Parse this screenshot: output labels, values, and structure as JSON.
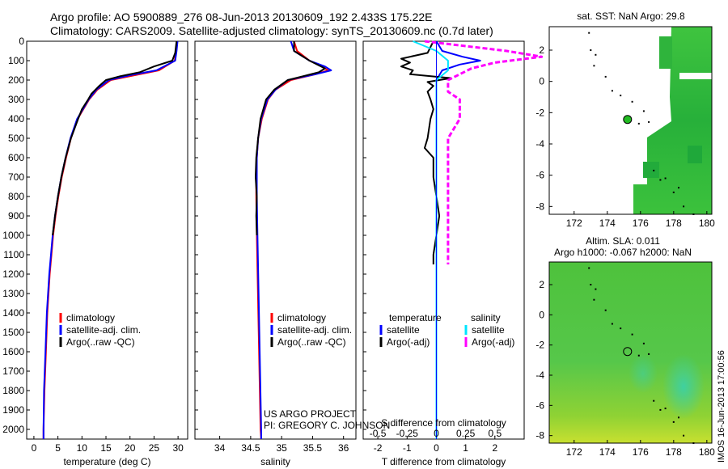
{
  "header": {
    "line1": "Argo profile: AO 5900889_276 08-Jun-2013 20130609_192 2.433S 175.22E",
    "line2": "Climatology: CARS2009. Satellite-adjusted climatology: synTS_20130609.nc (0.7d later)"
  },
  "colors": {
    "climatology": "#ff0000",
    "satellite": "#0000ff",
    "argo": "#000000",
    "salinity_satellite": "#00e5ff",
    "salinity_argo": "#ff00ff",
    "map_fill": "#33cc33",
    "map_land_gap": "#ffffff"
  },
  "chart_data": [
    {
      "id": "temperature",
      "type": "line",
      "xlabel": "temperature (deg C)",
      "ylabel": "",
      "xlim": [
        -1.5,
        32
      ],
      "ylim": [
        2050,
        0
      ],
      "xticks": [
        0,
        5,
        10,
        15,
        20,
        25,
        30
      ],
      "yticks": [
        0,
        100,
        200,
        300,
        400,
        500,
        600,
        700,
        800,
        900,
        1000,
        1100,
        1200,
        1300,
        1400,
        1500,
        1600,
        1700,
        1800,
        1900,
        2000
      ],
      "legend": [
        "climatology",
        "satellite-adj. clim.",
        "Argo(..raw -QC)"
      ],
      "series": [
        {
          "name": "climatology",
          "color": "#ff0000",
          "depth": [
            0,
            50,
            100,
            150,
            175,
            200,
            250,
            300,
            400,
            500,
            600,
            700,
            800,
            900,
            1000,
            1200,
            1400,
            1600,
            1800,
            2000,
            2050
          ],
          "values": [
            29.8,
            29.6,
            29.3,
            26,
            21,
            16,
            13.2,
            11.5,
            9.1,
            7.7,
            6.7,
            5.8,
            5.1,
            4.5,
            4.0,
            3.3,
            2.8,
            2.5,
            2.2,
            2.0,
            2.0
          ]
        },
        {
          "name": "satellite",
          "color": "#0000ff",
          "depth": [
            0,
            50,
            100,
            150,
            175,
            200,
            250,
            300,
            400,
            500,
            600,
            700,
            800,
            900,
            1000,
            1200,
            1400,
            1600,
            1800,
            2000,
            2050
          ],
          "values": [
            29.9,
            29.7,
            29.4,
            25.5,
            20,
            15.6,
            13,
            11.4,
            9.0,
            7.6,
            6.6,
            5.7,
            5.0,
            4.4,
            3.9,
            3.2,
            2.7,
            2.4,
            2.1,
            2.0,
            2.0
          ]
        },
        {
          "name": "Argo",
          "color": "#000000",
          "depth": [
            0,
            20,
            60,
            100,
            130,
            160,
            180,
            200,
            230,
            270,
            300,
            350,
            400,
            500,
            600,
            700,
            800,
            900,
            1000
          ],
          "values": [
            29.7,
            29.6,
            29.4,
            28.8,
            25,
            22,
            18,
            15,
            13.6,
            12,
            11.3,
            10,
            9.2,
            7.7,
            6.6,
            5.7,
            5.0,
            4.4,
            3.9
          ]
        }
      ]
    },
    {
      "id": "salinity",
      "type": "line",
      "xlabel": "salinity",
      "ylabel": "",
      "xlim": [
        33.6,
        36.2
      ],
      "ylim": [
        2050,
        0
      ],
      "xticks": [
        34,
        34.5,
        35,
        35.5,
        36
      ],
      "legend": [
        "climatology",
        "satellite-adj. clim.",
        "Argo(..raw -QC)"
      ],
      "series": [
        {
          "name": "climatology",
          "color": "#ff0000",
          "depth": [
            0,
            50,
            100,
            130,
            150,
            170,
            200,
            250,
            300,
            400,
            500,
            600,
            700,
            800,
            1000,
            1500,
            2000,
            2050
          ],
          "values": [
            35.2,
            35.25,
            35.45,
            35.65,
            35.75,
            35.55,
            35.15,
            34.9,
            34.78,
            34.68,
            34.62,
            34.6,
            34.59,
            34.59,
            34.6,
            34.63,
            34.66,
            34.67
          ]
        },
        {
          "name": "satellite",
          "color": "#0000ff",
          "depth": [
            0,
            50,
            100,
            130,
            150,
            170,
            200,
            250,
            300,
            400,
            500,
            600,
            700,
            800,
            1000,
            1500,
            2000,
            2050
          ],
          "values": [
            35.15,
            35.2,
            35.45,
            35.7,
            35.8,
            35.55,
            35.1,
            34.9,
            34.77,
            34.67,
            34.62,
            34.6,
            34.6,
            34.6,
            34.61,
            34.64,
            34.67,
            34.67
          ]
        },
        {
          "name": "Argo",
          "color": "#000000",
          "depth": [
            0,
            50,
            100,
            140,
            160,
            180,
            200,
            250,
            300,
            400,
            500,
            600,
            700,
            800,
            900,
            1000
          ],
          "values": [
            35.2,
            35.2,
            35.45,
            35.7,
            35.6,
            35.35,
            35.1,
            34.88,
            34.75,
            34.66,
            34.62,
            34.59,
            34.58,
            34.6,
            34.59,
            34.6
          ]
        }
      ]
    },
    {
      "id": "difference",
      "type": "line",
      "xlabel": "T difference from climatology",
      "x2label": "S difference from climatology",
      "xlim": [
        -2.5,
        3
      ],
      "ylim": [
        2050,
        0
      ],
      "xticks": [
        -2,
        -1,
        0,
        1,
        2
      ],
      "x2ticks": [
        "-0.5",
        "-0.25",
        "0",
        "0.25",
        "0.5"
      ],
      "legend_left": [
        "temperature",
        "satellite",
        "Argo(-adj)"
      ],
      "legend_right": [
        "salinity",
        "satellite",
        "Argo(-adj)"
      ],
      "series": [
        {
          "name": "T satellite",
          "color": "#0000ff",
          "depth": [
            0,
            50,
            80,
            100,
            120,
            150,
            200,
            300,
            500,
            1000,
            2050
          ],
          "values": [
            0,
            0.2,
            0.9,
            1.5,
            0.8,
            0.2,
            0,
            0,
            0,
            0,
            0
          ]
        },
        {
          "name": "T Argo",
          "color": "#000000",
          "depth": [
            0,
            60,
            90,
            110,
            130,
            150,
            170,
            190,
            210,
            230,
            260,
            300,
            350,
            400,
            500,
            550,
            600,
            700,
            800,
            900,
            1000,
            1100,
            1150
          ],
          "values": [
            -0.1,
            -0.3,
            -1.2,
            -0.9,
            -1.2,
            -0.8,
            -0.9,
            0.5,
            -0.3,
            -0.1,
            -0.3,
            -0.2,
            -0.1,
            -0.2,
            -0.3,
            -0.4,
            -0.1,
            -0.1,
            0,
            0.1,
            0,
            -0.1,
            -0.1
          ]
        },
        {
          "name": "S satellite",
          "color": "#00e5ff",
          "depth": [
            0,
            50,
            100,
            150,
            200,
            300,
            500,
            1000,
            2050
          ],
          "values": [
            -0.2,
            0,
            0.1,
            0.1,
            0,
            0,
            0,
            0,
            0
          ]
        },
        {
          "name": "S Argo",
          "color": "#ff00ff",
          "depth": [
            0,
            50,
            80,
            110,
            140,
            170,
            200,
            260,
            300,
            400,
            500,
            700,
            900,
            1100,
            1150
          ],
          "values": [
            -0.1,
            0.6,
            0.9,
            0.5,
            0.3,
            0.2,
            0.1,
            0.1,
            0.2,
            0.2,
            0.1,
            0.1,
            0.1,
            0.1,
            0.1
          ]
        }
      ],
      "footer": [
        "US ARGO PROJECT",
        "PI: GREGORY C. JOHNSON"
      ]
    },
    {
      "id": "sst_map",
      "type": "heatmap",
      "title": "sat. SST: NaN Argo: 29.8",
      "xlim": [
        170.5,
        180.3
      ],
      "ylim": [
        -8.5,
        3.5
      ],
      "xticks": [
        172,
        174,
        176,
        178,
        180
      ],
      "yticks": [
        -8,
        -6,
        -4,
        -2,
        0,
        2
      ],
      "profile_location": {
        "lon": 175.22,
        "lat": -2.433
      }
    },
    {
      "id": "sla_map",
      "type": "heatmap",
      "title": "Altim. SLA: 0.011",
      "subtitle": "Argo h1000: -0.067 h2000: NaN",
      "xlim": [
        170.5,
        180.3
      ],
      "ylim": [
        -8.5,
        3.5
      ],
      "xticks": [
        172,
        174,
        176,
        178,
        180
      ],
      "yticks": [
        -8,
        -6,
        -4,
        -2,
        0,
        2
      ],
      "profile_location": {
        "lon": 175.22,
        "lat": -2.433
      }
    }
  ],
  "stamp": "IMOS 16-Jun-2013 17:00:56"
}
